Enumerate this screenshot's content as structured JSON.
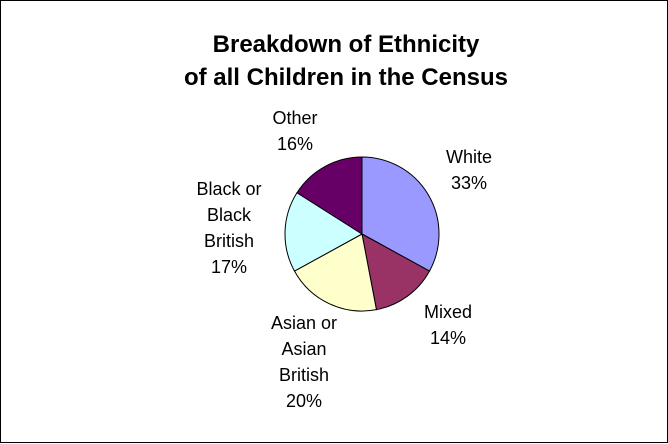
{
  "chart_data": {
    "type": "pie",
    "title": [
      "Breakdown of Ethnicity",
      "of all Children in the Census"
    ],
    "slices": [
      {
        "label": "White",
        "value": 33,
        "value_label": "33%",
        "color": "#9999FF"
      },
      {
        "label": "Mixed",
        "value": 14,
        "value_label": "14%",
        "color": "#993366"
      },
      {
        "label": "Asian or Asian British",
        "value": 20,
        "value_label": "20%",
        "color": "#FFFFCC"
      },
      {
        "label": "Black or Black British",
        "value": 17,
        "value_label": "17%",
        "color": "#CCFFFF"
      },
      {
        "label": "Other",
        "value": 16,
        "value_label": "16%",
        "color": "#660066"
      }
    ],
    "start_angle_deg": 0,
    "direction": "clockwise",
    "outline_color": "#000000",
    "legend": "none"
  }
}
